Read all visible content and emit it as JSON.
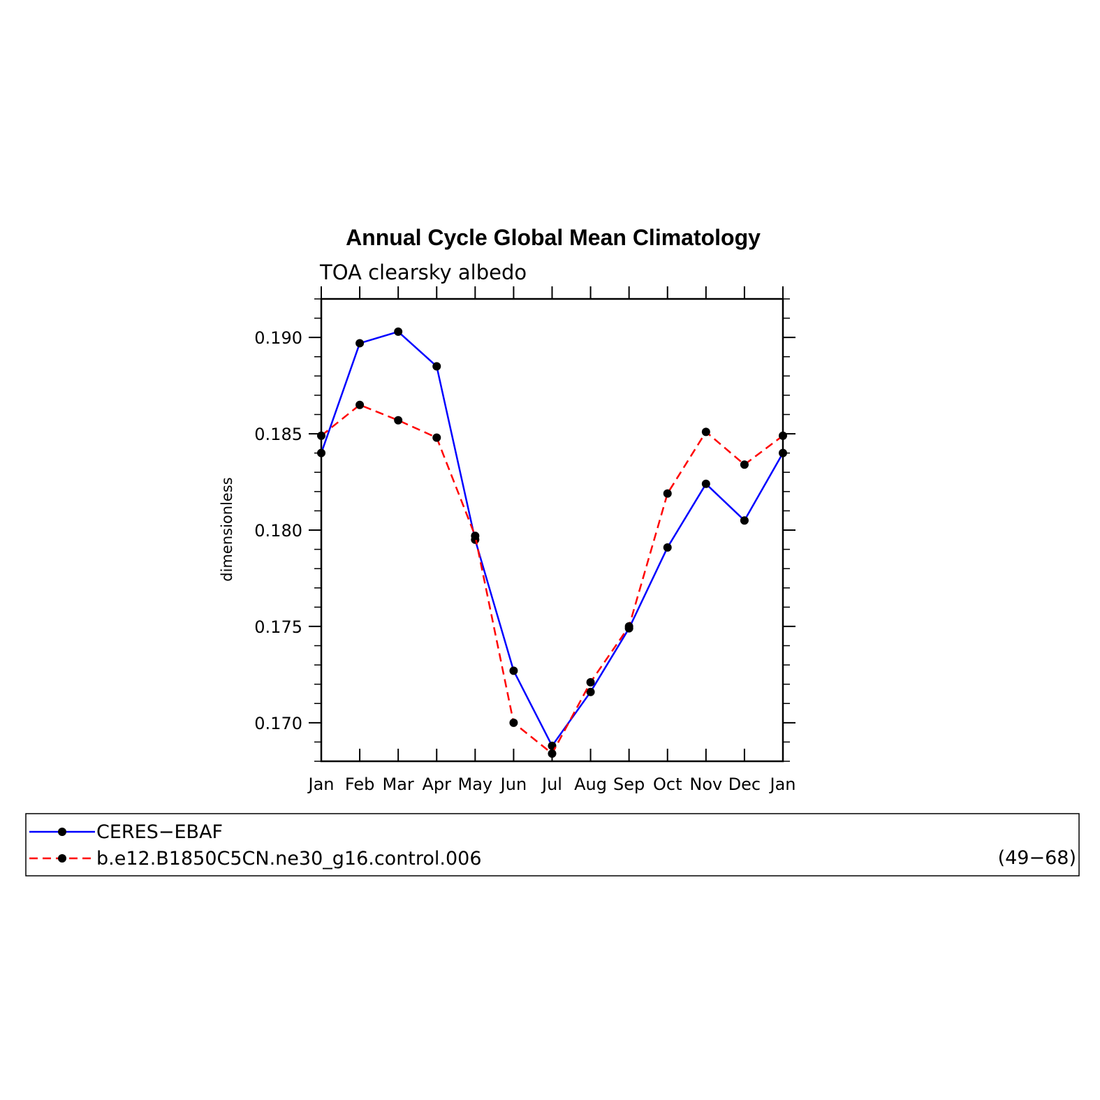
{
  "chart_data": {
    "type": "line",
    "title": "Annual Cycle Global Mean Climatology",
    "subtitle": "TOA clearsky albedo",
    "xlabel": "",
    "ylabel": "dimensionless",
    "categories": [
      "Jan",
      "Feb",
      "Mar",
      "Apr",
      "May",
      "Jun",
      "Jul",
      "Aug",
      "Sep",
      "Oct",
      "Nov",
      "Dec",
      "Jan"
    ],
    "ylim": [
      0.168,
      0.192
    ],
    "yticks": [
      0.17,
      0.175,
      0.18,
      0.185,
      0.19
    ],
    "ytick_labels": [
      "0.170",
      "0.175",
      "0.180",
      "0.185",
      "0.190"
    ],
    "grid": false,
    "legend_position": "bottom",
    "legend_right_note": "(49−68)",
    "series": [
      {
        "name": "CERES−EBAF",
        "color": "#0000ff",
        "dash": "solid",
        "values": [
          0.184,
          0.1897,
          0.1903,
          0.1885,
          0.1795,
          0.1727,
          0.1688,
          0.1716,
          0.1749,
          0.1791,
          0.1824,
          0.1805,
          0.184
        ]
      },
      {
        "name": "b.e12.B1850C5CN.ne30_g16.control.006",
        "color": "#ff0000",
        "dash": "dashed",
        "values": [
          0.1849,
          0.1865,
          0.1857,
          0.1848,
          0.1797,
          0.17,
          0.1684,
          0.1721,
          0.175,
          0.1819,
          0.1851,
          0.1834,
          0.1849
        ]
      }
    ]
  }
}
